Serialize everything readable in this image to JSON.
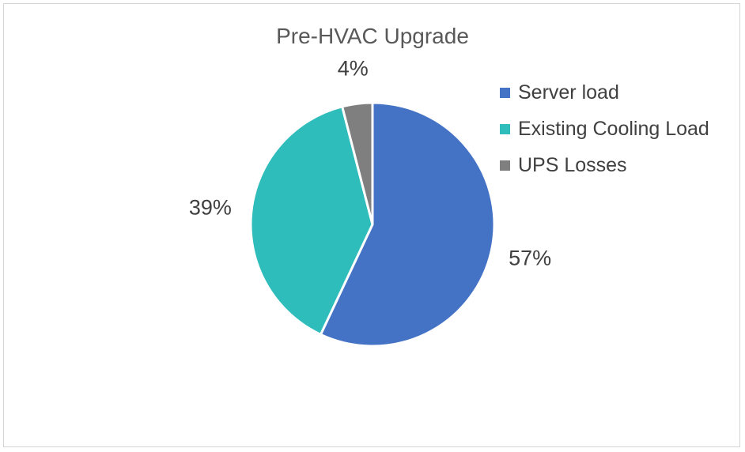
{
  "chart_data": {
    "type": "pie",
    "title": "Pre-HVAC Upgrade",
    "categories": [
      "Server load",
      "Existing Cooling Load",
      "UPS Losses"
    ],
    "values": [
      57,
      39,
      4
    ],
    "data_labels": [
      "57%",
      "39%",
      "4%"
    ],
    "colors": [
      "#4472C4",
      "#2EBDBA",
      "#7F7F7F"
    ],
    "legend_position": "right",
    "start_angle": "12 o'clock, clockwise"
  }
}
